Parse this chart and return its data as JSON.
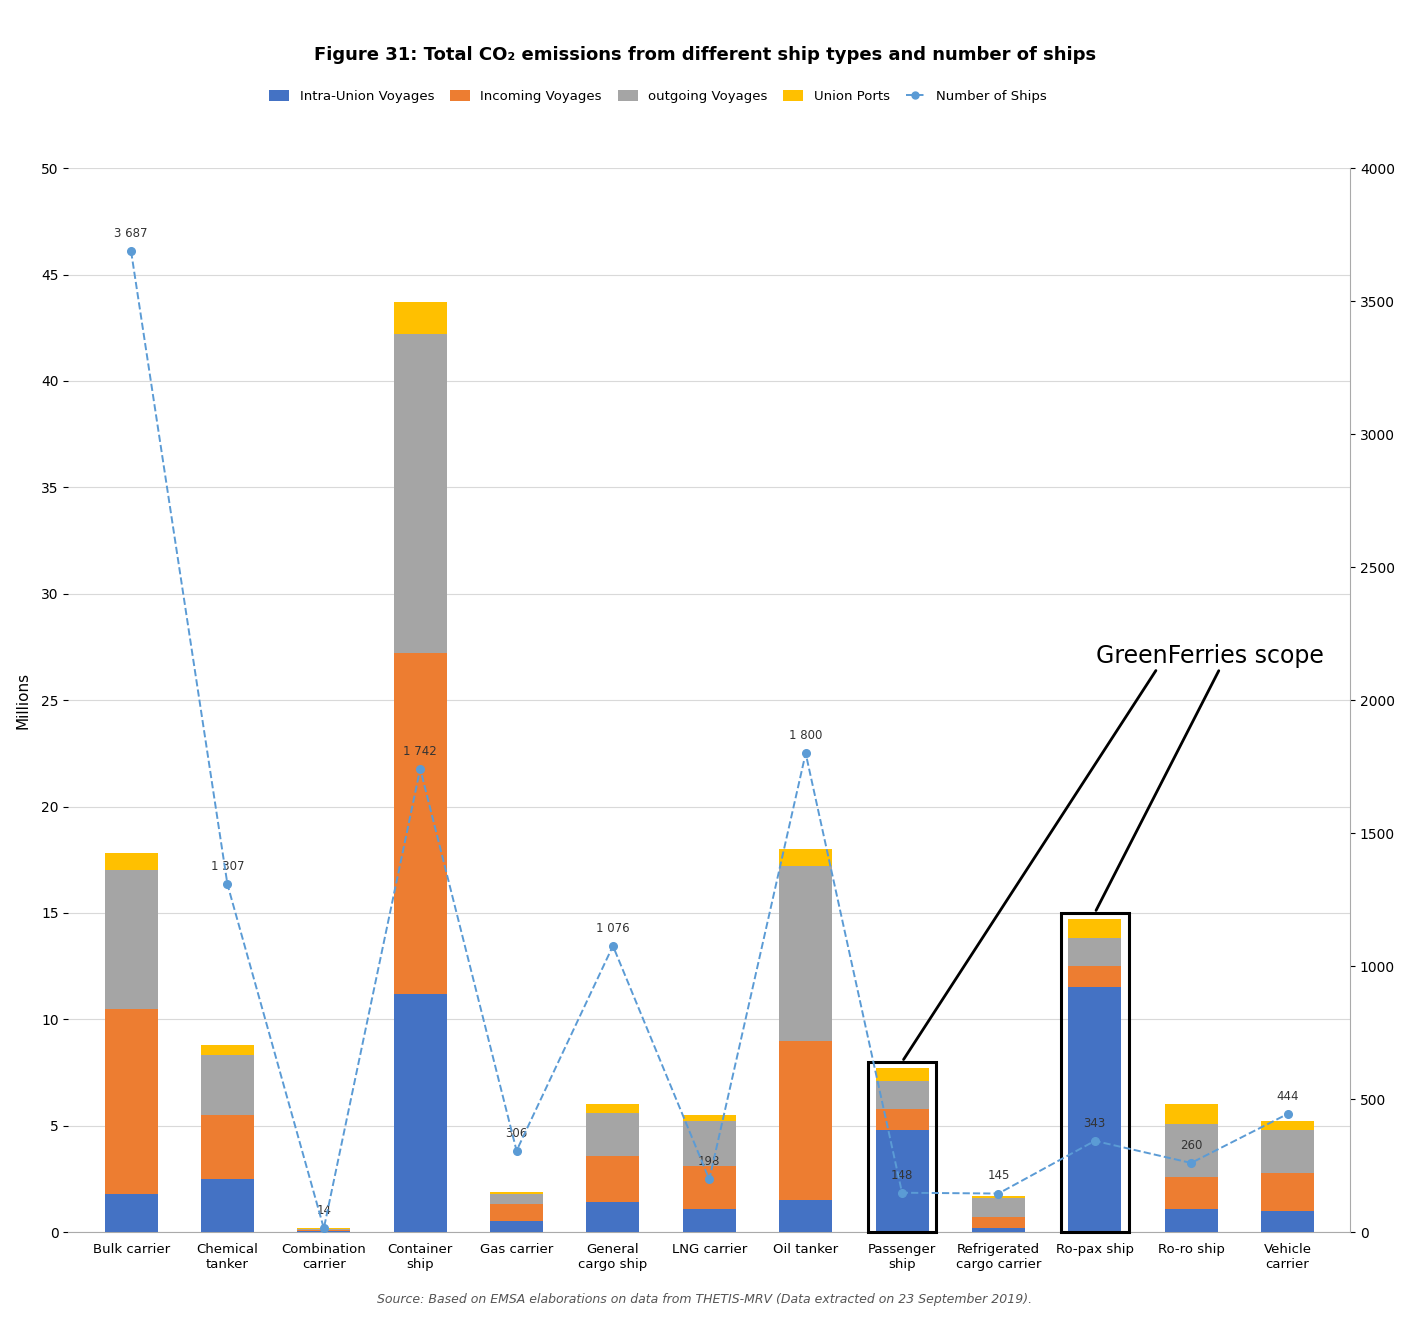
{
  "categories": [
    "Bulk carrier",
    "Chemical\ntanker",
    "Combination\ncarrier",
    "Container\nship",
    "Gas carrier",
    "General\ncargo ship",
    "LNG carrier",
    "Oil tanker",
    "Passenger\nship",
    "Refrigerated\ncargo carrier",
    "Ro-pax ship",
    "Ro-ro ship",
    "Vehicle\ncarrier"
  ],
  "intra_union": [
    1.8,
    2.5,
    0.05,
    11.2,
    0.5,
    1.4,
    1.1,
    1.5,
    4.8,
    0.2,
    11.5,
    1.1,
    1.0
  ],
  "incoming": [
    8.7,
    3.0,
    0.05,
    16.0,
    0.8,
    2.2,
    2.0,
    7.5,
    1.0,
    0.5,
    1.0,
    1.5,
    1.8
  ],
  "outgoing": [
    6.5,
    2.8,
    0.05,
    15.0,
    0.5,
    2.0,
    2.1,
    8.2,
    1.3,
    0.9,
    1.3,
    2.5,
    2.0
  ],
  "union_ports": [
    0.8,
    0.5,
    0.02,
    1.5,
    0.1,
    0.4,
    0.3,
    0.8,
    0.6,
    0.1,
    0.9,
    0.9,
    0.4
  ],
  "num_ships": [
    3687,
    1307,
    14,
    1742,
    306,
    1076,
    198,
    1800,
    148,
    145,
    343,
    260,
    444
  ],
  "ship_label_texts": [
    "3 687",
    "1 307",
    "14",
    "1 742",
    "306",
    "1 076",
    "198",
    "1 800",
    "148",
    "145",
    "343",
    "260",
    "444"
  ],
  "colors": {
    "intra_union": "#4472C4",
    "incoming": "#ED7D31",
    "outgoing": "#A5A5A5",
    "union_ports": "#FFC000",
    "num_ships_line": "#5B9BD5"
  },
  "title": "Figure 31: Total CO₂ emissions from different ship types and number of ships",
  "ylabel_left": "Millions",
  "ylim_left": [
    0,
    50
  ],
  "ylim_right": [
    0,
    4000
  ],
  "yticks_left": [
    0,
    5,
    10,
    15,
    20,
    25,
    30,
    35,
    40,
    45,
    50
  ],
  "yticks_right": [
    0,
    500,
    1000,
    1500,
    2000,
    2500,
    3000,
    3500,
    4000
  ],
  "source_text": "Source: Based on EMSA elaborations on data from THETIS-MRV (Data extracted on 23 September 2019).",
  "greenferries_label": "GreenFerries scope",
  "passenger_idx": 8,
  "ropax_idx": 10,
  "background_color": "#FFFFFF"
}
